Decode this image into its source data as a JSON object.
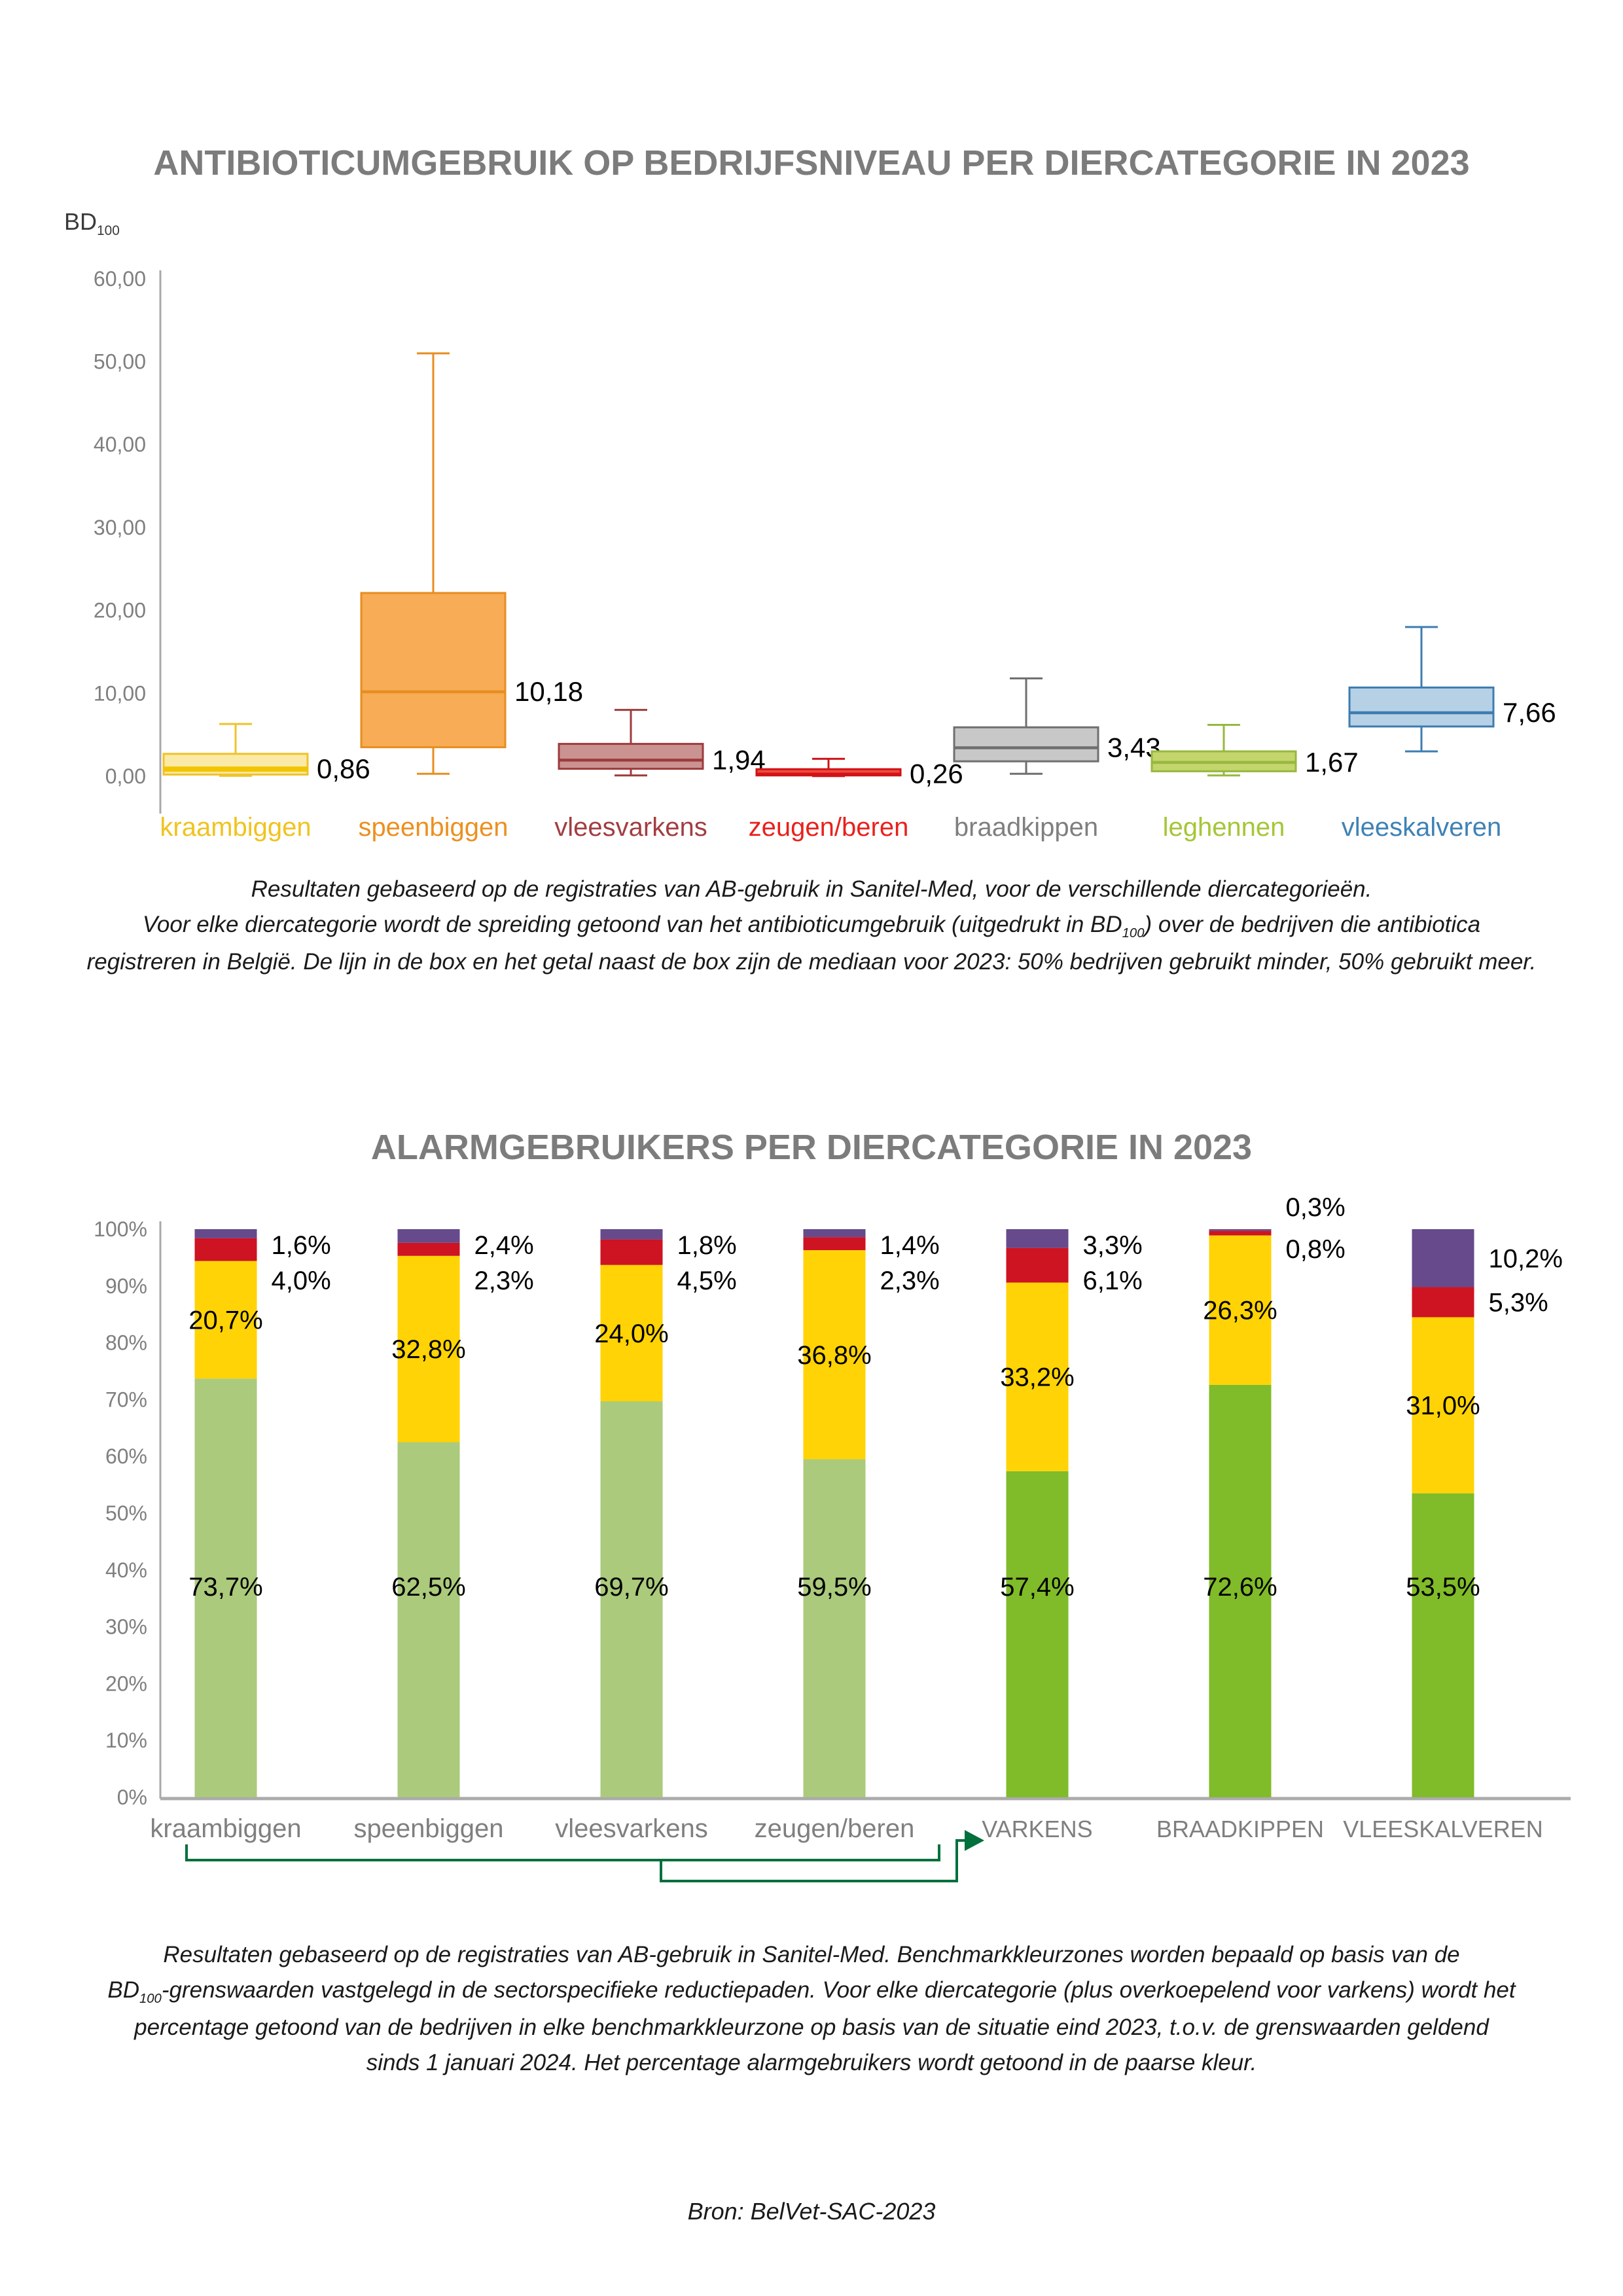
{
  "chart1": {
    "title": "ANTIBIOTICUMGEBRUIK OP BEDRIJFSNIVEAU PER DIERCATEGORIE IN 2023",
    "y_axis_label_main": "BD",
    "y_axis_label_sub": "100"
  },
  "chart2": {
    "title": "ALARMGEBRUIKERS PER DIERCATEGORIE IN 2023"
  },
  "caption1": {
    "line1": "Resultaten gebaseerd op de registraties van AB-gebruik in Sanitel-Med, voor de verschillende diercategorieën.",
    "line2_pre": "Voor elke diercategorie wordt de spreiding getoond van het antibioticumgebruik (uitgedrukt in BD",
    "line2_sub": "100",
    "line2_post": ") over de bedrijven die antibiotica",
    "line3": "registreren in België. De lijn in de box en het getal naast de box zijn de mediaan voor 2023: 50% bedrijven gebruikt minder, 50% gebruikt meer."
  },
  "caption2": {
    "line1": "Resultaten gebaseerd op de registraties van AB-gebruik in Sanitel-Med. Benchmarkkleurzones worden bepaald op basis van de",
    "line2_pre": "BD",
    "line2_sub": "100",
    "line2_post": "-grenswaarden vastgelegd in de sectorspecifieke reductiepaden. Voor elke diercategorie (plus overkoepelend voor varkens) wordt het",
    "line3": "percentage getoond van de bedrijven in elke benchmarkkleurzone op basis van de situatie eind 2023, t.o.v. de grenswaarden geldend",
    "line4": "sinds 1 januari 2024. Het percentage alarmgebruikers wordt getoond in de paarse kleur."
  },
  "source": "Bron: BelVet-SAC-2023",
  "chart_data": [
    {
      "type": "boxplot",
      "title": "ANTIBIOTICUMGEBRUIK OP BEDRIJFSNIVEAU PER DIERCATEGORIE IN 2023",
      "ylabel": "BD100",
      "ylim": [
        0,
        62
      ],
      "grid": false,
      "y_ticks": [
        {
          "value": 0,
          "label": "0,00"
        },
        {
          "value": 10,
          "label": "10,00"
        },
        {
          "value": 20,
          "label": "20,00"
        },
        {
          "value": 30,
          "label": "30,00"
        },
        {
          "value": 40,
          "label": "40,00"
        },
        {
          "value": 50,
          "label": "50,00"
        },
        {
          "value": 60,
          "label": "60,00"
        }
      ],
      "series": [
        {
          "category": "kraambiggen",
          "median": 0.86,
          "median_label": "0,86",
          "q1": 0.2,
          "q3": 2.7,
          "whisker_low": 0.05,
          "whisker_high": 6.3,
          "fill": "#FBE9A6",
          "stroke": "#EFC32B",
          "median_color": "#F2C500",
          "label_color": "#F0C31E"
        },
        {
          "category": "speenbiggen",
          "median": 10.18,
          "median_label": "10,18",
          "q1": 3.5,
          "q3": 22.1,
          "whisker_low": 0.3,
          "whisker_high": 51.0,
          "fill": "#F7AC55",
          "stroke": "#E88D20",
          "median_color": "#E88D20",
          "label_color": "#EC9020"
        },
        {
          "category": "vleesvarkens",
          "median": 1.94,
          "median_label": "1,94",
          "q1": 0.9,
          "q3": 3.9,
          "whisker_low": 0.1,
          "whisker_high": 8.0,
          "fill": "#CA9391",
          "stroke": "#9E3B3D",
          "median_color": "#9E3B3D",
          "label_color": "#A23E41"
        },
        {
          "category": "zeugen/beren",
          "median": 0.26,
          "median_label": "0,26",
          "q1": 0.1,
          "q3": 0.85,
          "whisker_low": 0.02,
          "whisker_high": 2.1,
          "fill": "#EE4B3E",
          "stroke": "#D01317",
          "median_color": "#D01317",
          "label_color": "#E8211D"
        },
        {
          "category": "braadkippen",
          "median": 3.43,
          "median_label": "3,43",
          "q1": 1.8,
          "q3": 5.9,
          "whisker_low": 0.3,
          "whisker_high": 11.8,
          "fill": "#C8C8C8",
          "stroke": "#6F6F6F",
          "median_color": "#6F6F6F",
          "label_color": "#7F7F7F"
        },
        {
          "category": "leghennen",
          "median": 1.67,
          "median_label": "1,67",
          "q1": 0.6,
          "q3": 3.0,
          "whisker_low": 0.1,
          "whisker_high": 6.2,
          "fill": "#C3D56C",
          "stroke": "#96B93E",
          "median_color": "#96B93E",
          "label_color": "#A5C637"
        },
        {
          "category": "vleeskalveren",
          "median": 7.66,
          "median_label": "7,66",
          "q1": 6.0,
          "q3": 10.7,
          "whisker_low": 3.0,
          "whisker_high": 18.0,
          "fill": "#B6D0E6",
          "stroke": "#3D7CB0",
          "median_color": "#3D7CB0",
          "label_color": "#3E82B5"
        }
      ]
    },
    {
      "type": "bar",
      "subtype": "stacked",
      "title": "ALARMGEBRUIKERS PER DIERCATEGORIE IN 2023",
      "ylim": [
        0,
        100
      ],
      "grid": false,
      "y_tick_labels": [
        "0%",
        "10%",
        "20%",
        "30%",
        "40%",
        "50%",
        "60%",
        "70%",
        "80%",
        "90%",
        "100%"
      ],
      "categories": [
        "kraambiggen",
        "speenbiggen",
        "vleesvarkens",
        "zeugen/beren",
        "VARKENS",
        "BRAADKIPPEN",
        "VLEESKALVEREN"
      ],
      "category_label_color": "#7F7F7F",
      "series": [
        {
          "name": "groene zone",
          "values": [
            73.7,
            62.5,
            69.7,
            59.5,
            57.4,
            72.6,
            53.5
          ],
          "labels": [
            "73,7%",
            "62,5%",
            "69,7%",
            "59,5%",
            "57,4%",
            "72,6%",
            "53,5%"
          ],
          "colors": [
            "#ABCA7C",
            "#ABCA7C",
            "#ABCA7C",
            "#ABCA7C",
            "#80BB29",
            "#80BB29",
            "#80BB29"
          ]
        },
        {
          "name": "gele zone",
          "values": [
            20.7,
            32.8,
            24.0,
            36.8,
            33.2,
            26.3,
            31.0
          ],
          "labels": [
            "20,7%",
            "32,8%",
            "24,0%",
            "36,8%",
            "33,2%",
            "26,3%",
            "31,0%"
          ],
          "color": "#FFD305"
        },
        {
          "name": "rode zone",
          "values": [
            4.0,
            2.3,
            4.5,
            2.3,
            6.1,
            0.8,
            5.3
          ],
          "labels": [
            "4,0%",
            "2,3%",
            "4,5%",
            "2,3%",
            "6,1%",
            "0,8%",
            "5,3%"
          ],
          "color": "#CE1322"
        },
        {
          "name": "paarse zone (alarmgebruikers)",
          "values": [
            1.6,
            2.4,
            1.8,
            1.4,
            3.3,
            0.3,
            10.2
          ],
          "labels": [
            "1,6%",
            "2,4%",
            "1,8%",
            "1,4%",
            "3,3%",
            "0,3%",
            "10,2%"
          ],
          "color": "#664A8C"
        }
      ],
      "varkens_bracket": {
        "covers": [
          "kraambiggen",
          "speenbiggen",
          "vleesvarkens",
          "zeugen/beren"
        ],
        "target": "VARKENS",
        "color": "#00703C"
      }
    }
  ]
}
